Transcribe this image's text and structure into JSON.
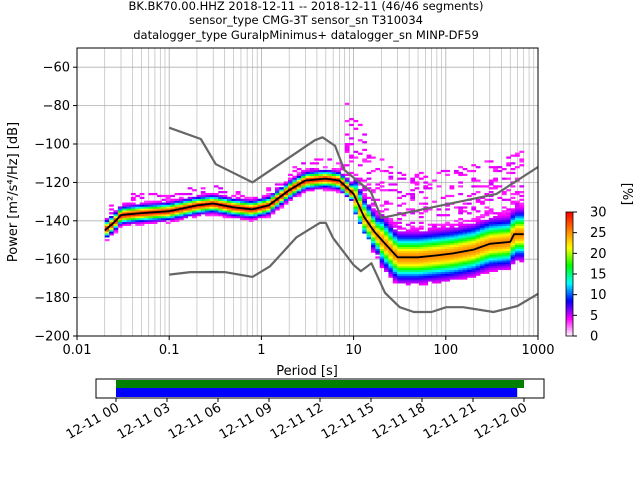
{
  "chart_data": {
    "type": "heatmap",
    "title_lines": [
      "BK.BK70.00.HHZ   2018-12-11 -- 2018-12-11  (46/46 segments)",
      "sensor_type CMG-3T sensor_sn T310034",
      "datalogger_type GuralpMinimus+ datalogger_sn MINP-DF59"
    ],
    "xlabel": "Period [s]",
    "ylabel": "Power [m²/s⁴/Hz] [dB]",
    "x_scale": "log",
    "xlim": [
      0.01,
      1000
    ],
    "ylim": [
      -200,
      -50
    ],
    "x_tick_labels": [
      "0.01",
      "0.1",
      "1",
      "10",
      "100",
      "1000"
    ],
    "y_tick_labels": [
      "−200",
      "−180",
      "−160",
      "−140",
      "−120",
      "−100",
      "−80",
      "−60"
    ],
    "colorbar": {
      "label": "[%]",
      "range": [
        0,
        30
      ],
      "tick_labels": [
        "0",
        "5",
        "10",
        "15",
        "20",
        "25",
        "30"
      ],
      "colormap": [
        "#ffffff",
        "#ff00ff",
        "#0000ff",
        "#00ffff",
        "#00ff00",
        "#ffff00",
        "#ff8000",
        "#ff0000"
      ]
    },
    "grid": true,
    "mean_curve": [
      {
        "x": 0.02,
        "y": -145
      },
      {
        "x": 0.025,
        "y": -141
      },
      {
        "x": 0.03,
        "y": -137
      },
      {
        "x": 0.05,
        "y": -136
      },
      {
        "x": 0.1,
        "y": -135
      },
      {
        "x": 0.2,
        "y": -132
      },
      {
        "x": 0.3,
        "y": -131
      },
      {
        "x": 0.5,
        "y": -133
      },
      {
        "x": 0.8,
        "y": -134
      },
      {
        "x": 1.2,
        "y": -132
      },
      {
        "x": 2,
        "y": -124
      },
      {
        "x": 3,
        "y": -119
      },
      {
        "x": 5,
        "y": -118
      },
      {
        "x": 7,
        "y": -119
      },
      {
        "x": 10,
        "y": -126
      },
      {
        "x": 13,
        "y": -138
      },
      {
        "x": 17,
        "y": -146
      },
      {
        "x": 22,
        "y": -152
      },
      {
        "x": 30,
        "y": -159
      },
      {
        "x": 50,
        "y": -159
      },
      {
        "x": 80,
        "y": -158
      },
      {
        "x": 120,
        "y": -157
      },
      {
        "x": 200,
        "y": -155
      },
      {
        "x": 300,
        "y": -152
      },
      {
        "x": 500,
        "y": -151
      },
      {
        "x": 550,
        "y": -147
      },
      {
        "x": 700,
        "y": -147
      }
    ],
    "nhnm": [
      {
        "x": 0.1,
        "y": -91.5
      },
      {
        "x": 0.22,
        "y": -97.4
      },
      {
        "x": 0.32,
        "y": -110.5
      },
      {
        "x": 0.8,
        "y": -120
      },
      {
        "x": 3.8,
        "y": -98
      },
      {
        "x": 4.6,
        "y": -96.5
      },
      {
        "x": 6.3,
        "y": -101
      },
      {
        "x": 7.9,
        "y": -113.5
      },
      {
        "x": 15.4,
        "y": -125
      },
      {
        "x": 20,
        "y": -138.5
      },
      {
        "x": 354.8,
        "y": -126
      },
      {
        "x": 1000,
        "y": -112
      }
    ],
    "nlnm": [
      {
        "x": 0.1,
        "y": -168
      },
      {
        "x": 0.17,
        "y": -166.7
      },
      {
        "x": 0.4,
        "y": -166.7
      },
      {
        "x": 0.8,
        "y": -169.2
      },
      {
        "x": 1.24,
        "y": -163.7
      },
      {
        "x": 2.4,
        "y": -148.6
      },
      {
        "x": 4.3,
        "y": -141.1
      },
      {
        "x": 5,
        "y": -141.1
      },
      {
        "x": 6,
        "y": -149
      },
      {
        "x": 10,
        "y": -163
      },
      {
        "x": 12,
        "y": -166.2
      },
      {
        "x": 15.6,
        "y": -162.1
      },
      {
        "x": 21.9,
        "y": -177.5
      },
      {
        "x": 31.6,
        "y": -185
      },
      {
        "x": 45,
        "y": -187.5
      },
      {
        "x": 70,
        "y": -187.5
      },
      {
        "x": 101,
        "y": -185
      },
      {
        "x": 154,
        "y": -185
      },
      {
        "x": 328,
        "y": -187.5
      },
      {
        "x": 600,
        "y": -184.4
      },
      {
        "x": 1000,
        "y": -178
      }
    ],
    "timeline": {
      "tick_labels": [
        "12-11 00",
        "12-11 03",
        "12-11 06",
        "12-11 09",
        "12-11 12",
        "12-11 15",
        "12-11 18",
        "12-11 21",
        "12-12 00"
      ],
      "bar_colors": [
        "#008000",
        "#0000ff"
      ],
      "coverage_hours": [
        0,
        24
      ]
    }
  }
}
